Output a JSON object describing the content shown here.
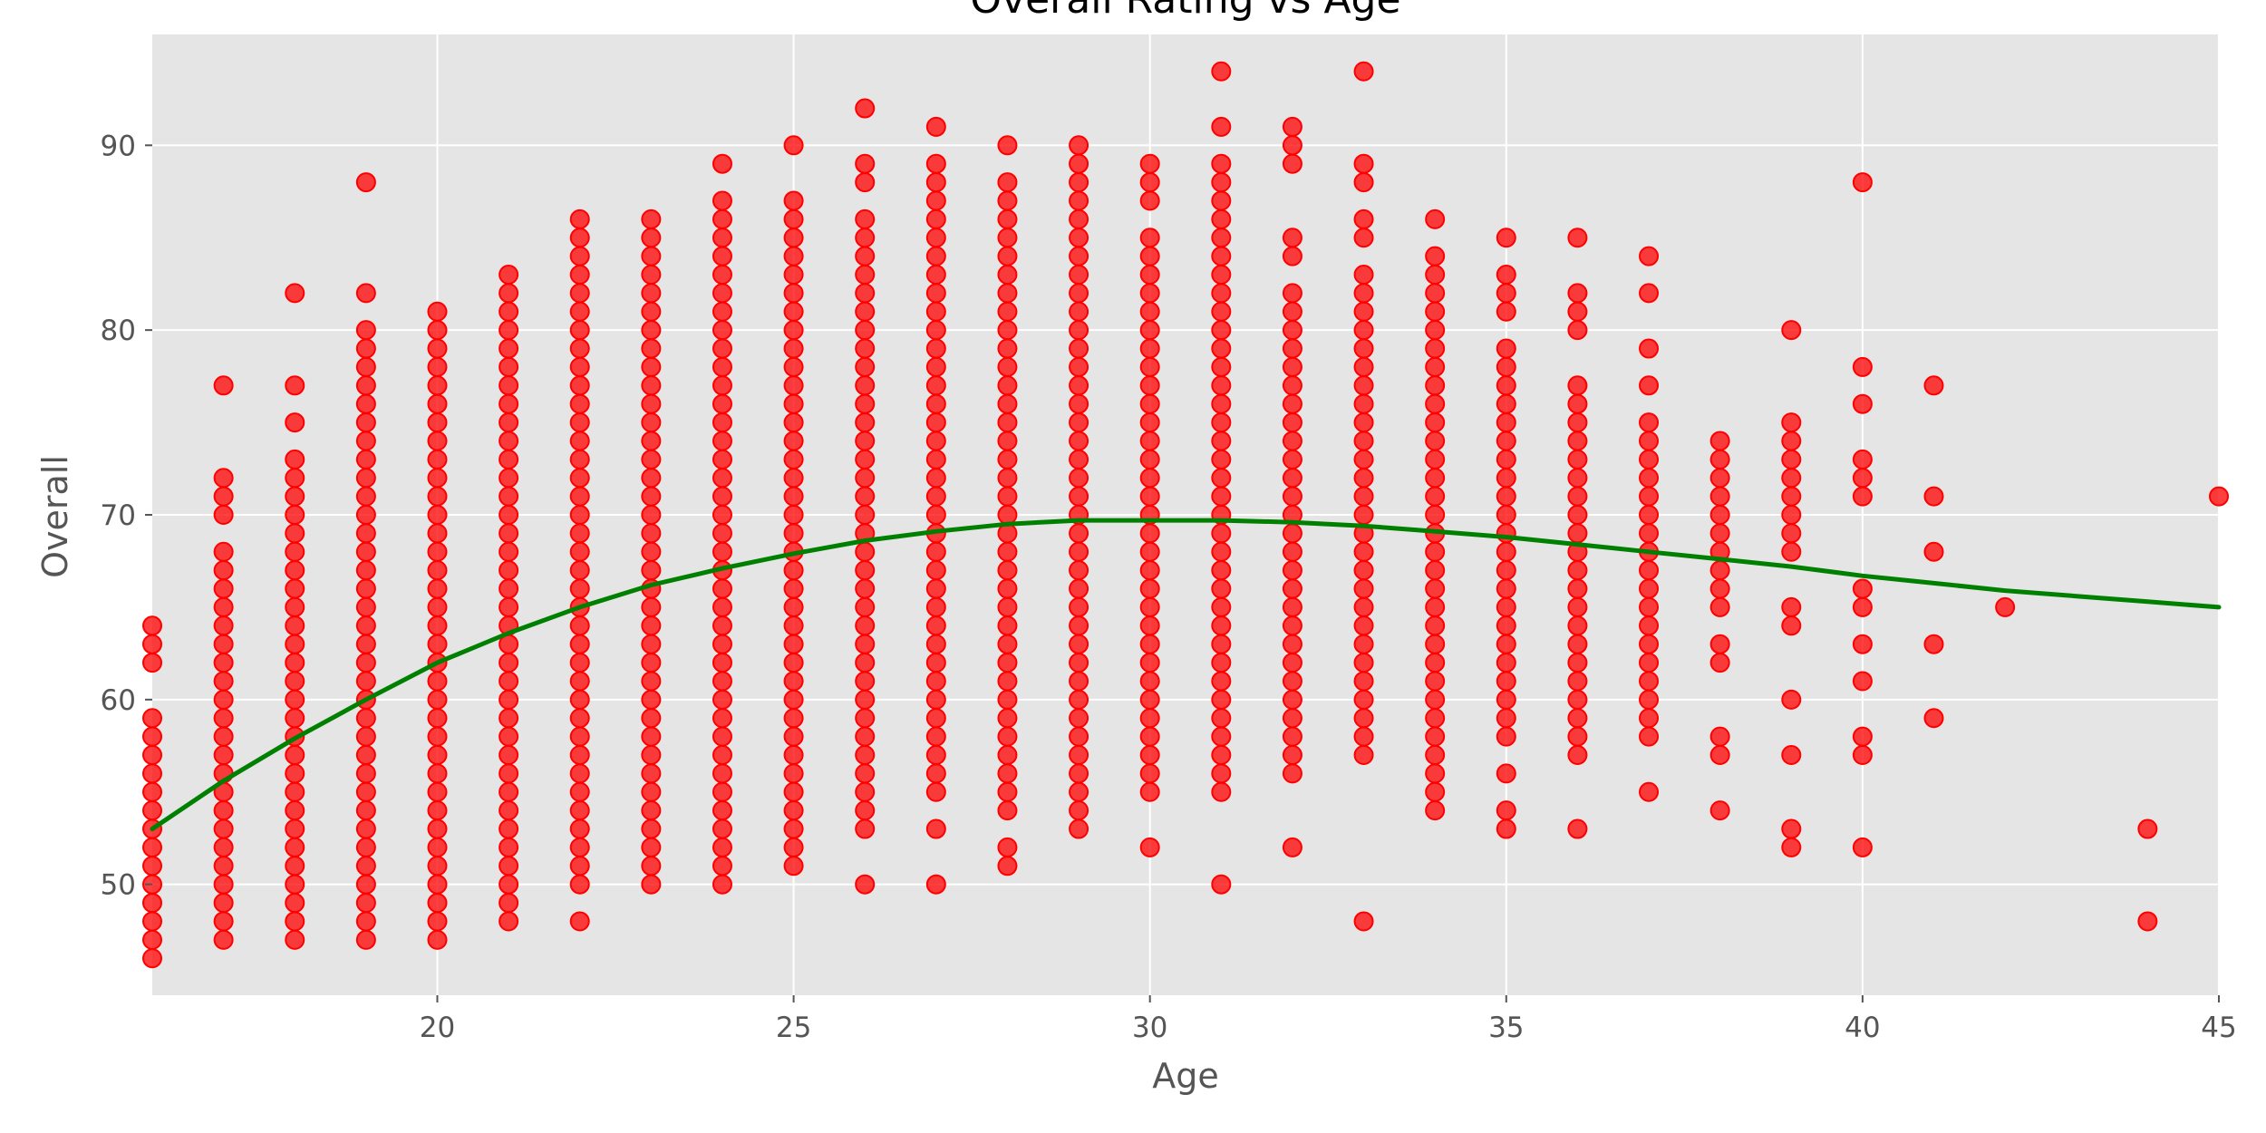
{
  "chart_data": {
    "type": "scatter",
    "title": "Overall Rating vs Age",
    "xlabel": "Age",
    "ylabel": "Overall",
    "xlim": [
      16,
      45
    ],
    "ylim": [
      44,
      96
    ],
    "x_ticks": [
      20,
      25,
      30,
      35,
      40,
      45
    ],
    "y_ticks": [
      50,
      60,
      70,
      80,
      90
    ],
    "grid": true,
    "background": "#e5e5e5",
    "colors": {
      "points": "#ff0000",
      "fit_line": "#008000"
    },
    "series": [
      {
        "kind": "points",
        "columns": [
          {
            "age": 16,
            "overall_values": [
              46,
              47,
              48,
              49,
              50,
              51,
              52,
              53,
              54,
              55,
              56,
              57,
              58,
              59,
              62,
              63,
              64
            ]
          },
          {
            "age": 17,
            "overall_values": [
              47,
              48,
              49,
              50,
              51,
              52,
              53,
              54,
              55,
              56,
              57,
              58,
              59,
              60,
              61,
              62,
              63,
              64,
              65,
              66,
              67,
              68,
              70,
              71,
              72,
              77
            ]
          },
          {
            "age": 18,
            "overall_values": [
              47,
              48,
              49,
              50,
              51,
              52,
              53,
              54,
              55,
              56,
              57,
              58,
              59,
              60,
              61,
              62,
              63,
              64,
              65,
              66,
              67,
              68,
              69,
              70,
              71,
              72,
              73,
              75,
              77,
              82
            ]
          },
          {
            "age": 19,
            "overall_values": [
              47,
              48,
              49,
              50,
              51,
              52,
              53,
              54,
              55,
              56,
              57,
              58,
              59,
              60,
              61,
              62,
              63,
              64,
              65,
              66,
              67,
              68,
              69,
              70,
              71,
              72,
              73,
              74,
              75,
              76,
              77,
              78,
              79,
              80,
              82,
              88
            ]
          },
          {
            "age": 20,
            "overall_values": [
              47,
              48,
              49,
              50,
              51,
              52,
              53,
              54,
              55,
              56,
              57,
              58,
              59,
              60,
              61,
              62,
              63,
              64,
              65,
              66,
              67,
              68,
              69,
              70,
              71,
              72,
              73,
              74,
              75,
              76,
              77,
              78,
              79,
              80,
              81
            ]
          },
          {
            "age": 21,
            "overall_values": [
              48,
              49,
              50,
              51,
              52,
              53,
              54,
              55,
              56,
              57,
              58,
              59,
              60,
              61,
              62,
              63,
              64,
              65,
              66,
              67,
              68,
              69,
              70,
              71,
              72,
              73,
              74,
              75,
              76,
              77,
              78,
              79,
              80,
              81,
              82,
              83
            ]
          },
          {
            "age": 22,
            "overall_values": [
              48,
              50,
              51,
              52,
              53,
              54,
              55,
              56,
              57,
              58,
              59,
              60,
              61,
              62,
              63,
              64,
              65,
              66,
              67,
              68,
              69,
              70,
              71,
              72,
              73,
              74,
              75,
              76,
              77,
              78,
              79,
              80,
              81,
              82,
              83,
              84,
              85,
              86
            ]
          },
          {
            "age": 23,
            "overall_values": [
              50,
              51,
              52,
              53,
              54,
              55,
              56,
              57,
              58,
              59,
              60,
              61,
              62,
              63,
              64,
              65,
              66,
              67,
              68,
              69,
              70,
              71,
              72,
              73,
              74,
              75,
              76,
              77,
              78,
              79,
              80,
              81,
              82,
              83,
              84,
              85,
              86
            ]
          },
          {
            "age": 24,
            "overall_values": [
              50,
              51,
              52,
              53,
              54,
              55,
              56,
              57,
              58,
              59,
              60,
              61,
              62,
              63,
              64,
              65,
              66,
              67,
              68,
              69,
              70,
              71,
              72,
              73,
              74,
              75,
              76,
              77,
              78,
              79,
              80,
              81,
              82,
              83,
              84,
              85,
              86,
              87,
              89
            ]
          },
          {
            "age": 25,
            "overall_values": [
              51,
              52,
              53,
              54,
              55,
              56,
              57,
              58,
              59,
              60,
              61,
              62,
              63,
              64,
              65,
              66,
              67,
              68,
              69,
              70,
              71,
              72,
              73,
              74,
              75,
              76,
              77,
              78,
              79,
              80,
              81,
              82,
              83,
              84,
              85,
              86,
              87,
              90
            ]
          },
          {
            "age": 26,
            "overall_values": [
              50,
              53,
              54,
              55,
              56,
              57,
              58,
              59,
              60,
              61,
              62,
              63,
              64,
              65,
              66,
              67,
              68,
              69,
              70,
              71,
              72,
              73,
              74,
              75,
              76,
              77,
              78,
              79,
              80,
              81,
              82,
              83,
              84,
              85,
              86,
              88,
              89,
              92
            ]
          },
          {
            "age": 27,
            "overall_values": [
              50,
              53,
              55,
              56,
              57,
              58,
              59,
              60,
              61,
              62,
              63,
              64,
              65,
              66,
              67,
              68,
              69,
              70,
              71,
              72,
              73,
              74,
              75,
              76,
              77,
              78,
              79,
              80,
              81,
              82,
              83,
              84,
              85,
              86,
              87,
              88,
              89,
              91
            ]
          },
          {
            "age": 28,
            "overall_values": [
              51,
              52,
              54,
              55,
              56,
              57,
              58,
              59,
              60,
              61,
              62,
              63,
              64,
              65,
              66,
              67,
              68,
              69,
              70,
              71,
              72,
              73,
              74,
              75,
              76,
              77,
              78,
              79,
              80,
              81,
              82,
              83,
              84,
              85,
              86,
              87,
              88,
              90
            ]
          },
          {
            "age": 29,
            "overall_values": [
              53,
              54,
              55,
              56,
              57,
              58,
              59,
              60,
              61,
              62,
              63,
              64,
              65,
              66,
              67,
              68,
              69,
              70,
              71,
              72,
              73,
              74,
              75,
              76,
              77,
              78,
              79,
              80,
              81,
              82,
              83,
              84,
              85,
              86,
              87,
              88,
              89,
              90
            ]
          },
          {
            "age": 30,
            "overall_values": [
              52,
              55,
              56,
              57,
              58,
              59,
              60,
              61,
              62,
              63,
              64,
              65,
              66,
              67,
              68,
              69,
              70,
              71,
              72,
              73,
              74,
              75,
              76,
              77,
              78,
              79,
              80,
              81,
              82,
              83,
              84,
              85,
              87,
              88,
              89
            ]
          },
          {
            "age": 31,
            "overall_values": [
              50,
              55,
              56,
              57,
              58,
              59,
              60,
              61,
              62,
              63,
              64,
              65,
              66,
              67,
              68,
              69,
              70,
              71,
              72,
              73,
              74,
              75,
              76,
              77,
              78,
              79,
              80,
              81,
              82,
              83,
              84,
              85,
              86,
              87,
              88,
              89,
              91,
              94
            ]
          },
          {
            "age": 32,
            "overall_values": [
              52,
              56,
              57,
              58,
              59,
              60,
              61,
              62,
              63,
              64,
              65,
              66,
              67,
              68,
              69,
              70,
              71,
              72,
              73,
              74,
              75,
              76,
              77,
              78,
              79,
              80,
              81,
              82,
              84,
              85,
              89,
              90,
              91
            ]
          },
          {
            "age": 33,
            "overall_values": [
              48,
              57,
              58,
              59,
              60,
              61,
              62,
              63,
              64,
              65,
              66,
              67,
              68,
              69,
              70,
              71,
              72,
              73,
              74,
              75,
              76,
              77,
              78,
              79,
              80,
              81,
              82,
              83,
              85,
              86,
              88,
              89,
              94
            ]
          },
          {
            "age": 34,
            "overall_values": [
              54,
              55,
              56,
              57,
              58,
              59,
              60,
              61,
              62,
              63,
              64,
              65,
              66,
              67,
              68,
              69,
              70,
              71,
              72,
              73,
              74,
              75,
              76,
              77,
              78,
              79,
              80,
              81,
              82,
              83,
              84,
              86
            ]
          },
          {
            "age": 35,
            "overall_values": [
              53,
              54,
              56,
              58,
              59,
              60,
              61,
              62,
              63,
              64,
              65,
              66,
              67,
              68,
              69,
              70,
              71,
              72,
              73,
              74,
              75,
              76,
              77,
              78,
              79,
              81,
              82,
              83,
              85
            ]
          },
          {
            "age": 36,
            "overall_values": [
              53,
              57,
              58,
              59,
              60,
              61,
              62,
              63,
              64,
              65,
              66,
              67,
              68,
              69,
              70,
              71,
              72,
              73,
              74,
              75,
              76,
              77,
              80,
              81,
              82,
              85
            ]
          },
          {
            "age": 37,
            "overall_values": [
              55,
              58,
              59,
              60,
              61,
              62,
              63,
              64,
              65,
              66,
              67,
              68,
              69,
              70,
              71,
              72,
              73,
              74,
              75,
              77,
              79,
              82,
              84
            ]
          },
          {
            "age": 38,
            "overall_values": [
              54,
              57,
              58,
              62,
              63,
              65,
              66,
              67,
              68,
              69,
              70,
              71,
              72,
              73,
              74
            ]
          },
          {
            "age": 39,
            "overall_values": [
              52,
              53,
              57,
              60,
              64,
              65,
              68,
              69,
              70,
              71,
              72,
              73,
              74,
              75,
              80
            ]
          },
          {
            "age": 40,
            "overall_values": [
              52,
              57,
              58,
              61,
              63,
              65,
              66,
              71,
              72,
              73,
              76,
              78,
              88
            ]
          },
          {
            "age": 41,
            "overall_values": [
              59,
              63,
              68,
              71,
              77
            ]
          },
          {
            "age": 42,
            "overall_values": [
              65
            ]
          },
          {
            "age": 44,
            "overall_values": [
              48,
              53
            ]
          },
          {
            "age": 45,
            "overall_values": [
              71
            ]
          }
        ]
      },
      {
        "kind": "line",
        "x": [
          16,
          17,
          18,
          19,
          20,
          21,
          22,
          23,
          24,
          25,
          26,
          27,
          28,
          29,
          30,
          31,
          32,
          33,
          34,
          35,
          36,
          37,
          38,
          39,
          40,
          41,
          42,
          43,
          44,
          45
        ],
        "y": [
          53.0,
          55.6,
          57.9,
          60.0,
          62.0,
          63.6,
          65.0,
          66.2,
          67.1,
          67.9,
          68.6,
          69.1,
          69.5,
          69.7,
          69.7,
          69.7,
          69.6,
          69.4,
          69.1,
          68.8,
          68.4,
          68.0,
          67.6,
          67.2,
          66.7,
          66.3,
          65.9,
          65.6,
          65.3,
          65.0
        ]
      }
    ]
  }
}
